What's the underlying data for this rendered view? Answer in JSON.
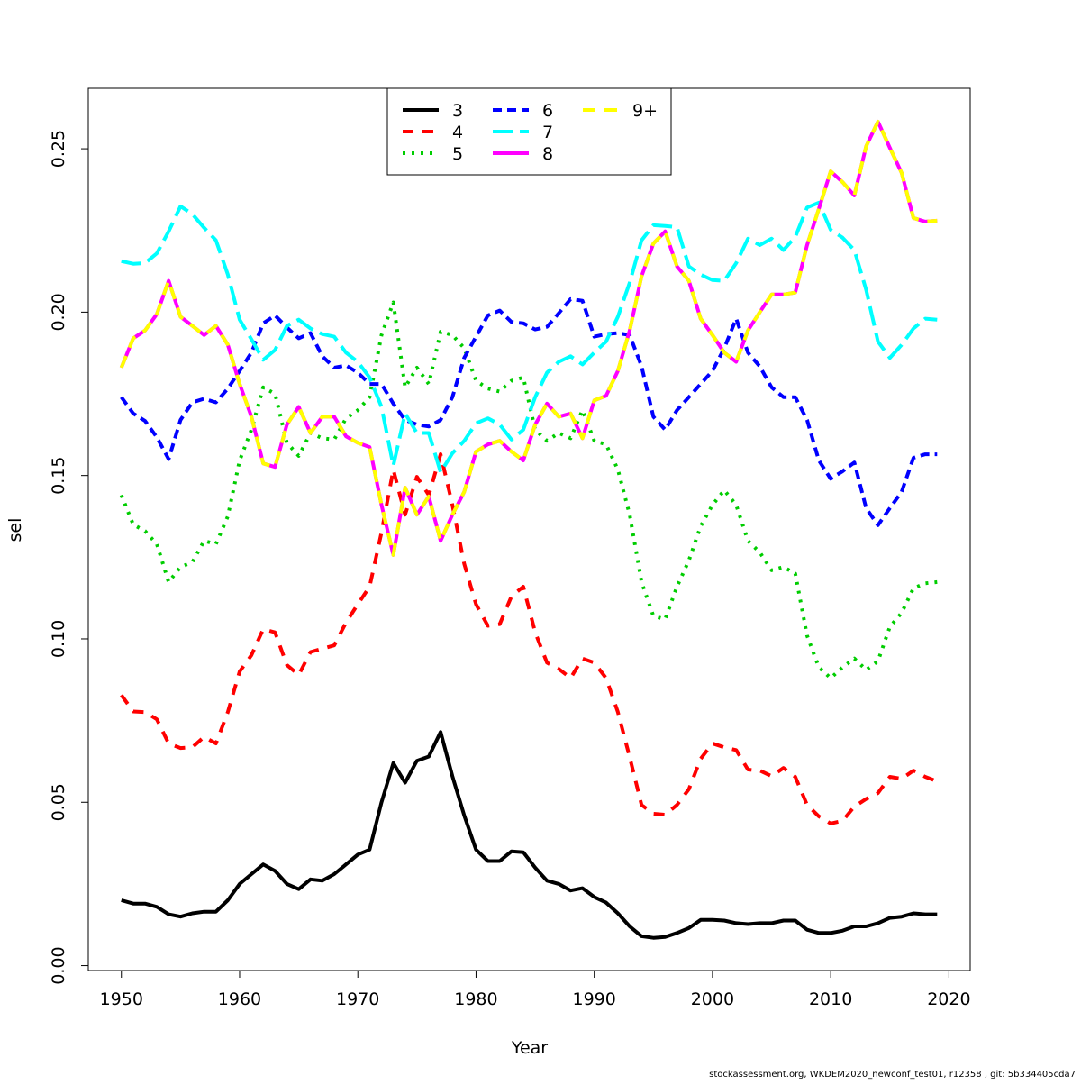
{
  "chart_data": {
    "type": "line",
    "title": "",
    "xlabel": "Year",
    "ylabel": "sel",
    "xlim": [
      1947.2,
      2021.8
    ],
    "ylim": [
      -0.0015,
      0.2685
    ],
    "xticks": [
      1950,
      1960,
      1970,
      1980,
      1990,
      2000,
      2010,
      2020
    ],
    "xtick_labels": [
      "1950",
      "1960",
      "1970",
      "1980",
      "1990",
      "2000",
      "2010",
      "2020"
    ],
    "yticks": [
      0,
      0.05,
      0.1,
      0.15,
      0.2,
      0.25
    ],
    "ytick_labels": [
      "0.00",
      "0.05",
      "0.10",
      "0.15",
      "0.20",
      "0.25"
    ],
    "grid": false,
    "legend_position": "top-center",
    "x_start": 1950,
    "series": [
      {
        "name": "3",
        "color": "#000000",
        "dash": "",
        "values": [
          0.02,
          0.019,
          0.019,
          0.018,
          0.0157,
          0.015,
          0.016,
          0.0165,
          0.0165,
          0.02,
          0.025,
          0.028,
          0.031,
          0.029,
          0.025,
          0.0234,
          0.0264,
          0.026,
          0.028,
          0.031,
          0.034,
          0.0355,
          0.05,
          0.062,
          0.056,
          0.0627,
          0.064,
          0.0715,
          0.058,
          0.046,
          0.0355,
          0.032,
          0.032,
          0.035,
          0.0347,
          0.03,
          0.026,
          0.025,
          0.023,
          0.0237,
          0.021,
          0.0193,
          0.016,
          0.012,
          0.009,
          0.0085,
          0.0088,
          0.01,
          0.0115,
          0.014,
          0.014,
          0.0138,
          0.013,
          0.0127,
          0.013,
          0.013,
          0.0138,
          0.0138,
          0.011,
          0.01,
          0.01,
          0.0107,
          0.012,
          0.012,
          0.013,
          0.0146,
          0.015,
          0.016,
          0.0157,
          0.0157
        ]
      },
      {
        "name": "4",
        "color": "#FF0000",
        "dash": "12,10",
        "values": [
          0.0828,
          0.0778,
          0.0776,
          0.0754,
          0.068,
          0.0666,
          0.0668,
          0.07,
          0.068,
          0.0776,
          0.09,
          0.095,
          0.103,
          0.102,
          0.092,
          0.089,
          0.096,
          0.097,
          0.098,
          0.105,
          0.1106,
          0.116,
          0.1326,
          0.1518,
          0.138,
          0.1496,
          0.144,
          0.1565,
          0.141,
          0.123,
          0.1106,
          0.104,
          0.1045,
          0.113,
          0.116,
          0.102,
          0.0927,
          0.0908,
          0.088,
          0.094,
          0.0927,
          0.088,
          0.0776,
          0.0638,
          0.0492,
          0.0465,
          0.0462,
          0.0492,
          0.054,
          0.0633,
          0.068,
          0.0668,
          0.066,
          0.06,
          0.0597,
          0.058,
          0.0605,
          0.0578,
          0.0492,
          0.0457,
          0.0435,
          0.0443,
          0.0487,
          0.051,
          0.0528,
          0.0578,
          0.0572,
          0.0597,
          0.0578,
          0.0564
        ]
      },
      {
        "name": "5",
        "color": "#00CD00",
        "dash": "3,7",
        "values": [
          0.144,
          0.135,
          0.133,
          0.129,
          0.1174,
          0.122,
          0.1235,
          0.13,
          0.129,
          0.1375,
          0.1546,
          0.164,
          0.177,
          0.175,
          0.16,
          0.156,
          0.163,
          0.1614,
          0.161,
          0.1675,
          0.17,
          0.174,
          0.193,
          0.203,
          0.177,
          0.183,
          0.178,
          0.194,
          0.193,
          0.189,
          0.179,
          0.1766,
          0.1757,
          0.179,
          0.18,
          0.164,
          0.1606,
          0.163,
          0.1614,
          0.17,
          0.1606,
          0.1595,
          0.1518,
          0.138,
          0.1174,
          0.107,
          0.106,
          0.116,
          0.124,
          0.1345,
          0.141,
          0.1455,
          0.141,
          0.13,
          0.1265,
          0.121,
          0.122,
          0.12,
          0.101,
          0.0913,
          0.088,
          0.0913,
          0.094,
          0.0905,
          0.0932,
          0.1037,
          0.108,
          0.1155,
          0.117,
          0.1174
        ]
      },
      {
        "name": "6",
        "color": "#0000FF",
        "dash": "10,6",
        "values": [
          0.174,
          0.169,
          0.1667,
          0.1617,
          0.155,
          0.167,
          0.1724,
          0.1735,
          0.1724,
          0.1766,
          0.182,
          0.1876,
          0.1966,
          0.199,
          0.1953,
          0.192,
          0.1936,
          0.1865,
          0.183,
          0.1837,
          0.1815,
          0.178,
          0.178,
          0.172,
          0.167,
          0.1656,
          0.165,
          0.167,
          0.174,
          0.186,
          0.1925,
          0.199,
          0.2005,
          0.197,
          0.1966,
          0.1947,
          0.1955,
          0.1997,
          0.204,
          0.2035,
          0.1925,
          0.1933,
          0.1936,
          0.193,
          0.1834,
          0.168,
          0.164,
          0.17,
          0.174,
          0.178,
          0.182,
          0.189,
          0.198,
          0.1876,
          0.1834,
          0.177,
          0.174,
          0.174,
          0.167,
          0.1546,
          0.149,
          0.1513,
          0.154,
          0.14,
          0.1348,
          0.14,
          0.145,
          0.1554,
          0.1565,
          0.1565
        ]
      },
      {
        "name": "7",
        "color": "#00FFFF",
        "dash": "22,8",
        "values": [
          0.2156,
          0.2148,
          0.215,
          0.218,
          0.2247,
          0.2324,
          0.23,
          0.2258,
          0.222,
          0.2115,
          0.1977,
          0.1917,
          0.1854,
          0.1884,
          0.1958,
          0.1977,
          0.195,
          0.1933,
          0.1925,
          0.1876,
          0.1848,
          0.18,
          0.171,
          0.153,
          0.169,
          0.163,
          0.163,
          0.151,
          0.1568,
          0.1606,
          0.166,
          0.1675,
          0.1656,
          0.161,
          0.164,
          0.174,
          0.1815,
          0.1848,
          0.1865,
          0.184,
          0.1876,
          0.191,
          0.1986,
          0.209,
          0.222,
          0.2266,
          0.2264,
          0.226,
          0.214,
          0.2115,
          0.2098,
          0.2096,
          0.215,
          0.2225,
          0.2205,
          0.2225,
          0.219,
          0.223,
          0.232,
          0.2335,
          0.2252,
          0.2228,
          0.219,
          0.2068,
          0.191,
          0.186,
          0.19,
          0.195,
          0.198,
          0.1977
        ]
      },
      {
        "name": "8",
        "color": "#FF00FF",
        "dash": "",
        "values": [
          0.183,
          0.192,
          0.1944,
          0.1994,
          0.2096,
          0.1986,
          0.1958,
          0.193,
          0.1958,
          0.19,
          0.178,
          0.168,
          0.1537,
          0.1526,
          0.1656,
          0.171,
          0.163,
          0.168,
          0.168,
          0.162,
          0.16,
          0.1587,
          0.141,
          0.1257,
          0.1463,
          0.138,
          0.1436,
          0.13,
          0.138,
          0.145,
          0.1573,
          0.1595,
          0.1606,
          0.1573,
          0.1546,
          0.1656,
          0.172,
          0.168,
          0.169,
          0.1614,
          0.173,
          0.1744,
          0.182,
          0.1944,
          0.211,
          0.221,
          0.2247,
          0.214,
          0.2096,
          0.198,
          0.193,
          0.1876,
          0.1848,
          0.1944,
          0.2,
          0.2054,
          0.2054,
          0.206,
          0.2205,
          0.2316,
          0.2431,
          0.2398,
          0.2357,
          0.2508,
          0.2583,
          0.2503,
          0.2426,
          0.2288,
          0.2277,
          0.228
        ]
      },
      {
        "name": "9+",
        "color": "#FFFF00",
        "dash": "14,10",
        "values": [
          0.183,
          0.192,
          0.1944,
          0.1994,
          0.2096,
          0.1986,
          0.1958,
          0.193,
          0.1958,
          0.19,
          0.178,
          0.168,
          0.1537,
          0.1526,
          0.1656,
          0.171,
          0.163,
          0.168,
          0.168,
          0.162,
          0.16,
          0.1587,
          0.141,
          0.1257,
          0.1463,
          0.138,
          0.1436,
          0.13,
          0.138,
          0.145,
          0.1573,
          0.1595,
          0.1606,
          0.1573,
          0.1546,
          0.1656,
          0.172,
          0.168,
          0.169,
          0.1614,
          0.173,
          0.1744,
          0.182,
          0.1944,
          0.211,
          0.221,
          0.2247,
          0.214,
          0.2096,
          0.198,
          0.193,
          0.1876,
          0.1848,
          0.1944,
          0.2,
          0.2054,
          0.2054,
          0.206,
          0.2205,
          0.2316,
          0.2431,
          0.2398,
          0.2357,
          0.2508,
          0.2583,
          0.2503,
          0.2426,
          0.2288,
          0.2277,
          0.228
        ]
      }
    ]
  },
  "footer": "stockassessment.org, WKDEM2020_newconf_test01, r12358 , git: 5b334405cda7"
}
